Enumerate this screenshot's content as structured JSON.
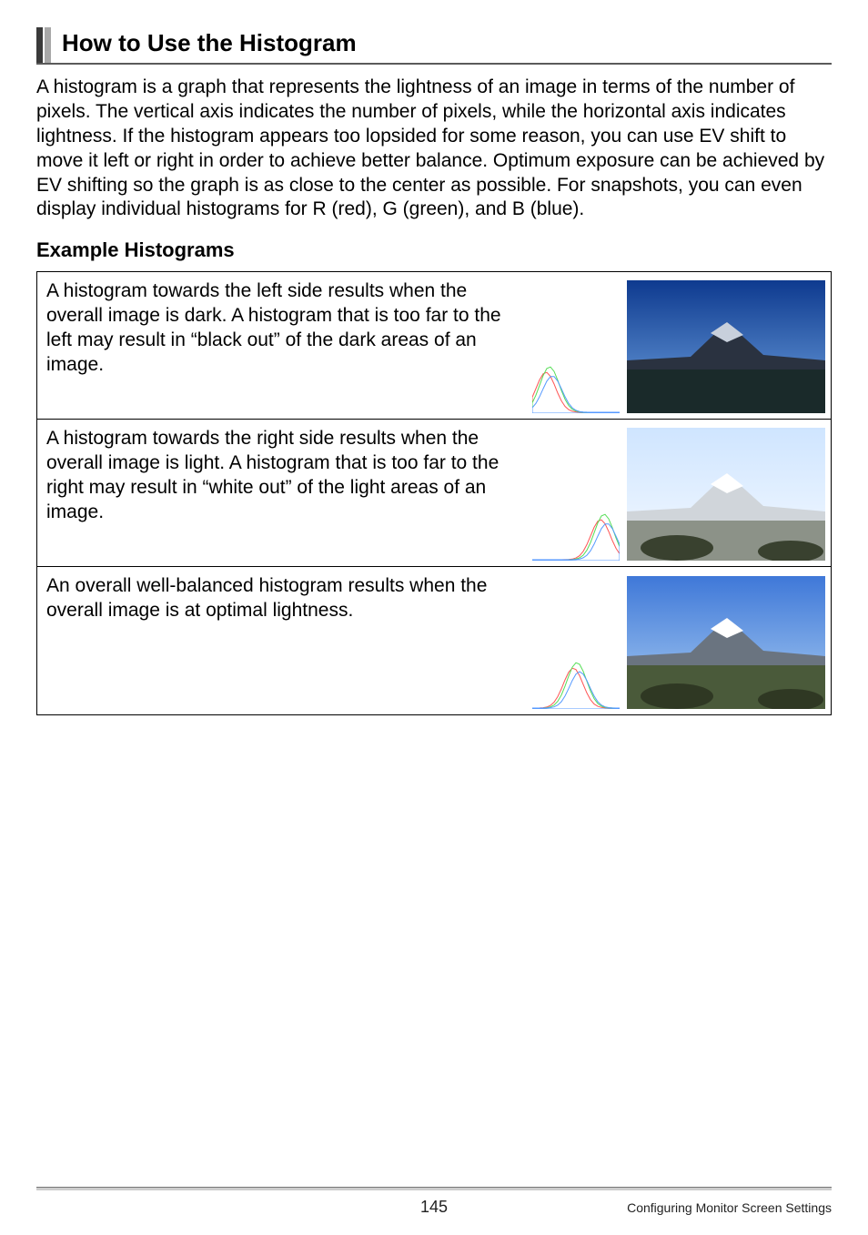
{
  "heading": "How to Use the Histogram",
  "intro": "A histogram is a graph that represents the lightness of an image in terms of the number of pixels. The vertical axis indicates the number of pixels, while the horizontal axis indicates lightness. If the histogram appears too lopsided for some reason, you can use EV shift to move it left or right in order to achieve better balance. Optimum exposure can be achieved by EV shifting so the graph is as close to the center as possible. For snapshots, you can even display individual histograms for R (red), G (green), and B (blue).",
  "subheading": "Example Histograms",
  "rows": [
    {
      "desc": "A histogram towards the left side results when the overall image is dark. A histogram that is too far to the left may result in “black out” of the dark areas of an image.",
      "variant": "dark",
      "histo_skew": "left",
      "sky_top": "#0e3a8f",
      "sky_bot": "#6fa3e0",
      "ground": "#1a2a2a",
      "mountain": "#2a3240"
    },
    {
      "desc": "A histogram towards the right side results when the overall image is light. A histogram that is too far to the right may result in “white out” of the light areas of an image.",
      "variant": "light",
      "histo_skew": "right",
      "sky_top": "#cfe5ff",
      "sky_bot": "#f4f9ff",
      "ground": "#8c9288",
      "mountain": "#d0d5da"
    },
    {
      "desc": "An overall well-balanced histogram results when the overall image is at optimal lightness.",
      "variant": "balanced",
      "histo_skew": "center",
      "sky_top": "#3f78d8",
      "sky_bot": "#a9cdf2",
      "ground": "#4a5a3a",
      "mountain": "#6a7480"
    }
  ],
  "histogram_colors": {
    "white": "#ffffff",
    "red": "#ff5555",
    "green": "#55dd55",
    "blue": "#5599ff"
  },
  "footer": {
    "page": "145",
    "section": "Configuring Monitor Screen Settings"
  }
}
